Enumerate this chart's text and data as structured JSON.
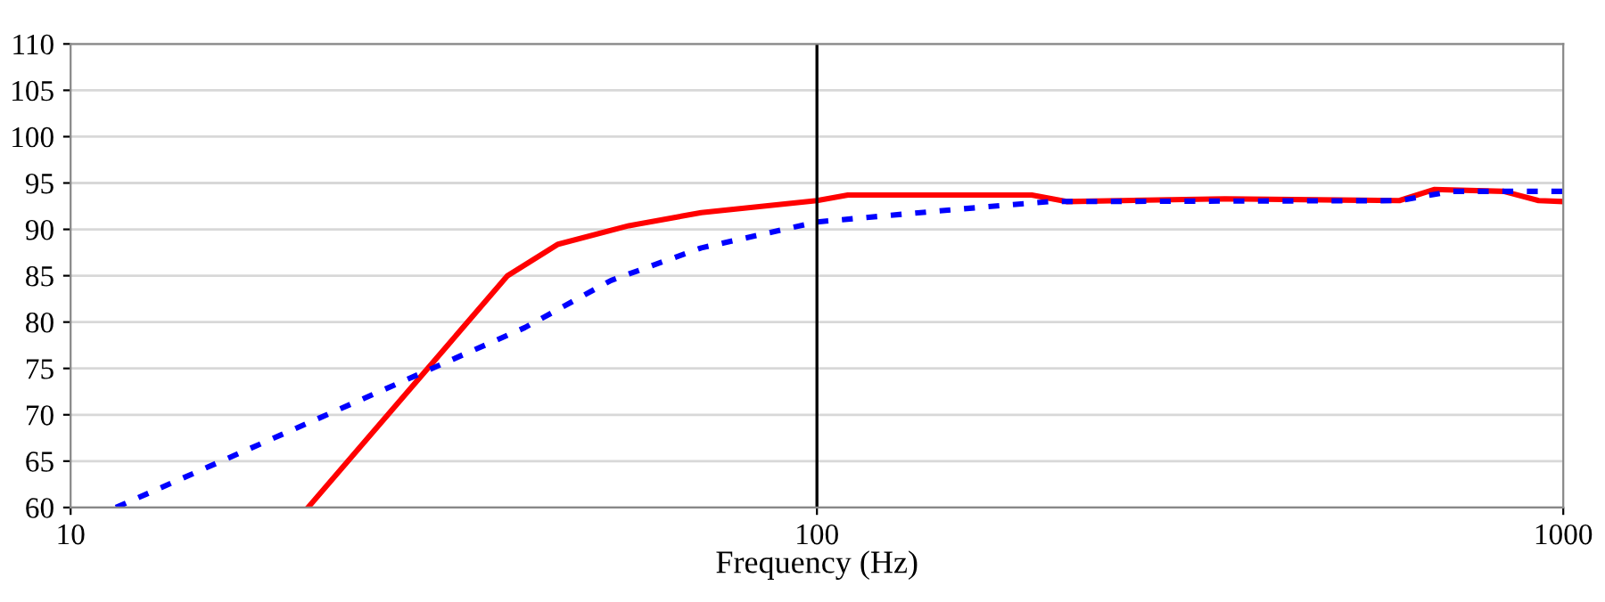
{
  "chart_data": {
    "type": "line",
    "xlabel": "Frequency (Hz)",
    "log": "x",
    "xlim": [
      10,
      1000
    ],
    "xticks": [
      10,
      100,
      1000
    ],
    "ylim": [
      60,
      110
    ],
    "yticks": [
      60,
      65,
      70,
      75,
      80,
      85,
      90,
      95,
      100,
      105,
      110
    ],
    "grid": "y",
    "marker": "none",
    "series": [
      {
        "color": "#ff0000",
        "line_style": "solid",
        "x": [
          20.8,
          38.5,
          45,
          56,
          70,
          100,
          110,
          194,
          216,
          352,
          603,
          671,
          832,
          927,
          1000
        ],
        "values": [
          60,
          85,
          88.4,
          90.4,
          91.8,
          93.1,
          93.7,
          93.7,
          93,
          93.3,
          93.1,
          94.3,
          94.1,
          93.1,
          93
        ]
      },
      {
        "color": "#0000ff",
        "line_style": "dashed",
        "x": [
          11.5,
          40.6,
          53,
          70,
          100,
          156,
          205,
          603,
          708,
          1000
        ],
        "values": [
          60,
          79.4,
          84.5,
          88,
          90.8,
          92.2,
          93,
          93.1,
          94.1,
          94.1
        ]
      }
    ],
    "ref_lines": [
      {
        "axis": "x",
        "value": 100,
        "color": "#000000"
      }
    ]
  }
}
